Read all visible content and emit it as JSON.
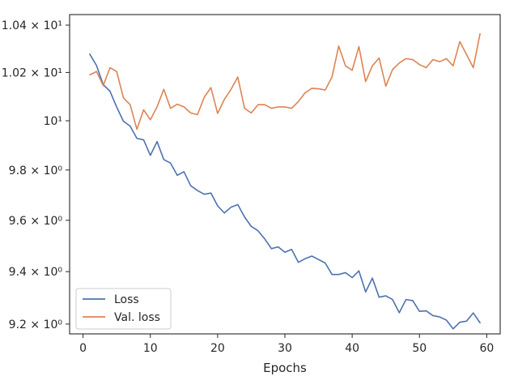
{
  "chart_data": {
    "type": "line",
    "title": "",
    "xlabel": "Epochs",
    "ylabel": "",
    "xlim": [
      -2,
      62
    ],
    "ylim": [
      9.163,
      10.445
    ],
    "yscale": "log",
    "grid": false,
    "legend_position": "lower-left",
    "x_ticks": [
      0,
      10,
      20,
      30,
      40,
      50,
      60
    ],
    "y_ticks": [
      {
        "value": 9.2,
        "label": "9.2 × 10⁰"
      },
      {
        "value": 9.4,
        "label": "9.4 × 10⁰"
      },
      {
        "value": 9.6,
        "label": "9.6 × 10⁰"
      },
      {
        "value": 9.8,
        "label": "9.8 × 10⁰"
      },
      {
        "value": 10.0,
        "label": "10¹"
      },
      {
        "value": 10.2,
        "label": "1.02 × 10¹"
      },
      {
        "value": 10.4,
        "label": "1.04 × 10¹"
      }
    ],
    "x": [
      1,
      2,
      3,
      4,
      5,
      6,
      7,
      8,
      9,
      10,
      11,
      12,
      13,
      14,
      15,
      16,
      17,
      18,
      19,
      20,
      21,
      22,
      23,
      24,
      25,
      26,
      27,
      28,
      29,
      30,
      31,
      32,
      33,
      34,
      35,
      36,
      37,
      38,
      39,
      40,
      41,
      42,
      43,
      44,
      45,
      46,
      47,
      48,
      49,
      50,
      51,
      52,
      53,
      54,
      55,
      56,
      57,
      58,
      59
    ],
    "series": [
      {
        "name": "Loss",
        "color": "#4c72b0",
        "values": [
          10.277,
          10.229,
          10.149,
          10.122,
          10.056,
          9.998,
          9.978,
          9.928,
          9.922,
          9.859,
          9.915,
          9.842,
          9.828,
          9.779,
          9.793,
          9.737,
          9.718,
          9.703,
          9.708,
          9.657,
          9.629,
          9.652,
          9.662,
          9.613,
          9.576,
          9.559,
          9.527,
          9.489,
          9.496,
          9.475,
          9.486,
          9.436,
          9.45,
          9.46,
          9.447,
          9.433,
          9.389,
          9.389,
          9.396,
          9.377,
          9.403,
          9.322,
          9.375,
          9.302,
          9.307,
          9.293,
          9.243,
          9.293,
          9.289,
          9.248,
          9.25,
          9.232,
          9.227,
          9.215,
          9.182,
          9.207,
          9.211,
          9.242,
          9.205
        ]
      },
      {
        "name": "Val. loss",
        "color": "#dd8452",
        "values": [
          10.19,
          10.204,
          10.145,
          10.22,
          10.204,
          10.094,
          10.066,
          9.965,
          10.045,
          10.004,
          10.057,
          10.13,
          10.051,
          10.068,
          10.057,
          10.032,
          10.025,
          10.096,
          10.137,
          10.03,
          10.088,
          10.13,
          10.181,
          10.051,
          10.032,
          10.066,
          10.066,
          10.051,
          10.057,
          10.057,
          10.051,
          10.079,
          10.115,
          10.134,
          10.132,
          10.127,
          10.181,
          10.311,
          10.228,
          10.209,
          10.309,
          10.162,
          10.228,
          10.261,
          10.143,
          10.212,
          10.24,
          10.258,
          10.254,
          10.233,
          10.22,
          10.254,
          10.245,
          10.258,
          10.228,
          10.33,
          10.275,
          10.22,
          10.363
        ]
      }
    ]
  }
}
